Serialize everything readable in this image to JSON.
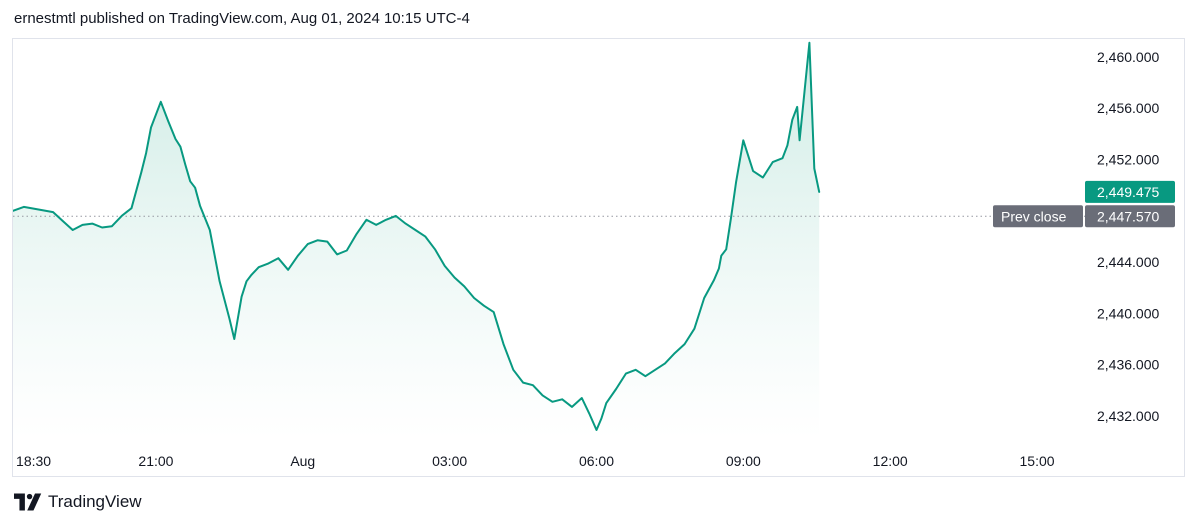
{
  "header": {
    "published_text": "ernestmtl published on TradingView.com, Aug 01, 2024 10:15 UTC-4"
  },
  "footer": {
    "brand": "TradingView"
  },
  "colors": {
    "line": "#089981",
    "area_top": "#cdebe4",
    "area_bottom": "#ffffff",
    "last_tag": "#089981",
    "prev_tag": "#6a6d78",
    "prev_line": "#9598a1",
    "text": "#131722",
    "border": "#e0e3eb"
  },
  "chart_data": {
    "type": "area",
    "title": "",
    "xlabel": "",
    "ylabel": "",
    "ylim": [
      2430.2,
      2461.4
    ],
    "yticks": [
      "2,432.000",
      "2,436.000",
      "2,440.000",
      "2,444.000",
      "2,448.000",
      "2,452.000",
      "2,456.000",
      "2,460.000"
    ],
    "ytick_values": [
      2432,
      2436,
      2440,
      2444,
      2448,
      2452,
      2456,
      2460
    ],
    "x_unit": "hours since 18:00 Jul 31 (UTC-4)",
    "xlim": [
      0.08,
      22.0
    ],
    "xticks": [
      {
        "x": 0.5,
        "label": "18:30"
      },
      {
        "x": 3.0,
        "label": "21:00"
      },
      {
        "x": 6.0,
        "label": "Aug"
      },
      {
        "x": 9.0,
        "label": "03:00"
      },
      {
        "x": 12.0,
        "label": "06:00"
      },
      {
        "x": 15.0,
        "label": "09:00"
      },
      {
        "x": 18.0,
        "label": "12:00"
      },
      {
        "x": 21.0,
        "label": "15:00"
      }
    ],
    "prev_close": {
      "label": "Prev close",
      "value": 2447.57,
      "value_label": "2,447.570"
    },
    "last": {
      "value": 2449.475,
      "value_label": "2,449.475"
    },
    "series": [
      {
        "x": [
          0.08,
          0.3,
          0.6,
          0.9,
          1.1,
          1.3,
          1.5,
          1.7,
          1.9,
          2.1,
          2.3,
          2.5,
          2.7,
          2.8,
          2.9,
          3.1,
          3.25,
          3.4,
          3.5,
          3.6,
          3.7,
          3.8,
          3.9,
          4.1,
          4.3,
          4.5,
          4.6,
          4.75,
          4.85,
          4.95,
          5.1,
          5.3,
          5.5,
          5.7,
          5.9,
          6.1,
          6.3,
          6.5,
          6.7,
          6.9,
          7.1,
          7.3,
          7.5,
          7.7,
          7.9,
          8.1,
          8.3,
          8.5,
          8.7,
          8.9,
          9.1,
          9.3,
          9.5,
          9.7,
          9.9,
          10.1,
          10.3,
          10.5,
          10.7,
          10.9,
          11.1,
          11.3,
          11.5,
          11.7,
          11.85,
          12.0,
          12.1,
          12.2,
          12.4,
          12.6,
          12.8,
          13.0,
          13.2,
          13.4,
          13.6,
          13.8,
          14.0,
          14.2,
          14.4,
          14.5,
          14.55,
          14.65,
          14.75,
          14.85,
          15.0,
          15.2,
          15.4,
          15.6,
          15.8,
          15.9,
          16.0,
          16.1,
          16.15,
          16.25,
          16.35,
          16.45,
          16.55
        ],
        "values": [
          2448.0,
          2448.3,
          2448.1,
          2447.9,
          2447.2,
          2446.5,
          2446.9,
          2447.0,
          2446.7,
          2446.8,
          2447.6,
          2448.2,
          2451.0,
          2452.5,
          2454.5,
          2456.5,
          2455.0,
          2453.6,
          2453.0,
          2451.6,
          2450.3,
          2449.8,
          2448.4,
          2446.5,
          2442.5,
          2439.6,
          2438.0,
          2441.3,
          2442.5,
          2443.0,
          2443.6,
          2443.9,
          2444.3,
          2443.4,
          2444.5,
          2445.4,
          2445.7,
          2445.6,
          2444.6,
          2444.9,
          2446.2,
          2447.3,
          2446.9,
          2447.3,
          2447.6,
          2447.0,
          2446.5,
          2446.0,
          2445.0,
          2443.7,
          2442.8,
          2442.1,
          2441.2,
          2440.6,
          2440.1,
          2437.6,
          2435.6,
          2434.6,
          2434.4,
          2433.6,
          2433.1,
          2433.3,
          2432.7,
          2433.4,
          2432.2,
          2430.9,
          2431.8,
          2433.0,
          2434.1,
          2435.3,
          2435.6,
          2435.1,
          2435.6,
          2436.1,
          2436.9,
          2437.6,
          2438.8,
          2441.2,
          2442.6,
          2443.5,
          2444.5,
          2445.0,
          2447.5,
          2450.2,
          2453.5,
          2451.1,
          2450.6,
          2451.8,
          2452.1,
          2453.1,
          2455.1,
          2456.1,
          2453.5,
          2457.3,
          2461.1,
          2451.3,
          2449.475
        ]
      }
    ]
  }
}
